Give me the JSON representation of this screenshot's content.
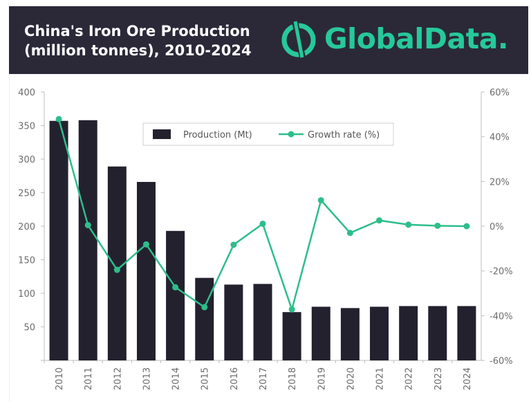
{
  "header": {
    "title_line1": "China's Iron Ore Production",
    "title_line2": "(million tonnes), 2010-2024",
    "brand": "GlobalData.",
    "brand_icon": "globaldata-logo-icon"
  },
  "colors": {
    "header_bg": "#2b2938",
    "brand": "#26c99a",
    "bar": "#24212f",
    "line": "#2dbe8a"
  },
  "chart_data": {
    "type": "bar",
    "title": "China's Iron Ore Production (million tonnes), 2010-2024",
    "categories": [
      "2010",
      "2011",
      "2012",
      "2013",
      "2014",
      "2015",
      "2016",
      "2017",
      "2018",
      "2019",
      "2020",
      "2021",
      "2022",
      "2023",
      "2024"
    ],
    "series": [
      {
        "name": "Production (Mt)",
        "type": "bar",
        "axis": "left",
        "values": [
          357,
          358,
          289,
          266,
          193,
          123,
          113,
          114,
          72,
          80,
          78,
          80,
          81,
          81,
          81
        ]
      },
      {
        "name": "Growth rate (%)",
        "type": "line",
        "axis": "right",
        "values": [
          47.9,
          0.5,
          -19.5,
          -8.1,
          -27.3,
          -36.2,
          -8.3,
          1.1,
          -37.2,
          11.6,
          -3.0,
          2.6,
          0.7,
          0.2,
          0.0
        ]
      }
    ],
    "left_axis": {
      "ylim": [
        0,
        400
      ],
      "ticks": [
        50,
        100,
        150,
        200,
        250,
        300,
        350,
        400
      ]
    },
    "right_axis": {
      "ylim": [
        -60,
        60
      ],
      "ticks": [
        "-60%",
        "-40%",
        "-20%",
        "0%",
        "20%",
        "40%",
        "60%"
      ]
    },
    "legend": {
      "position": "top-center",
      "items": [
        "Production (Mt)",
        "Growth rate (%)"
      ]
    },
    "grid": false
  }
}
